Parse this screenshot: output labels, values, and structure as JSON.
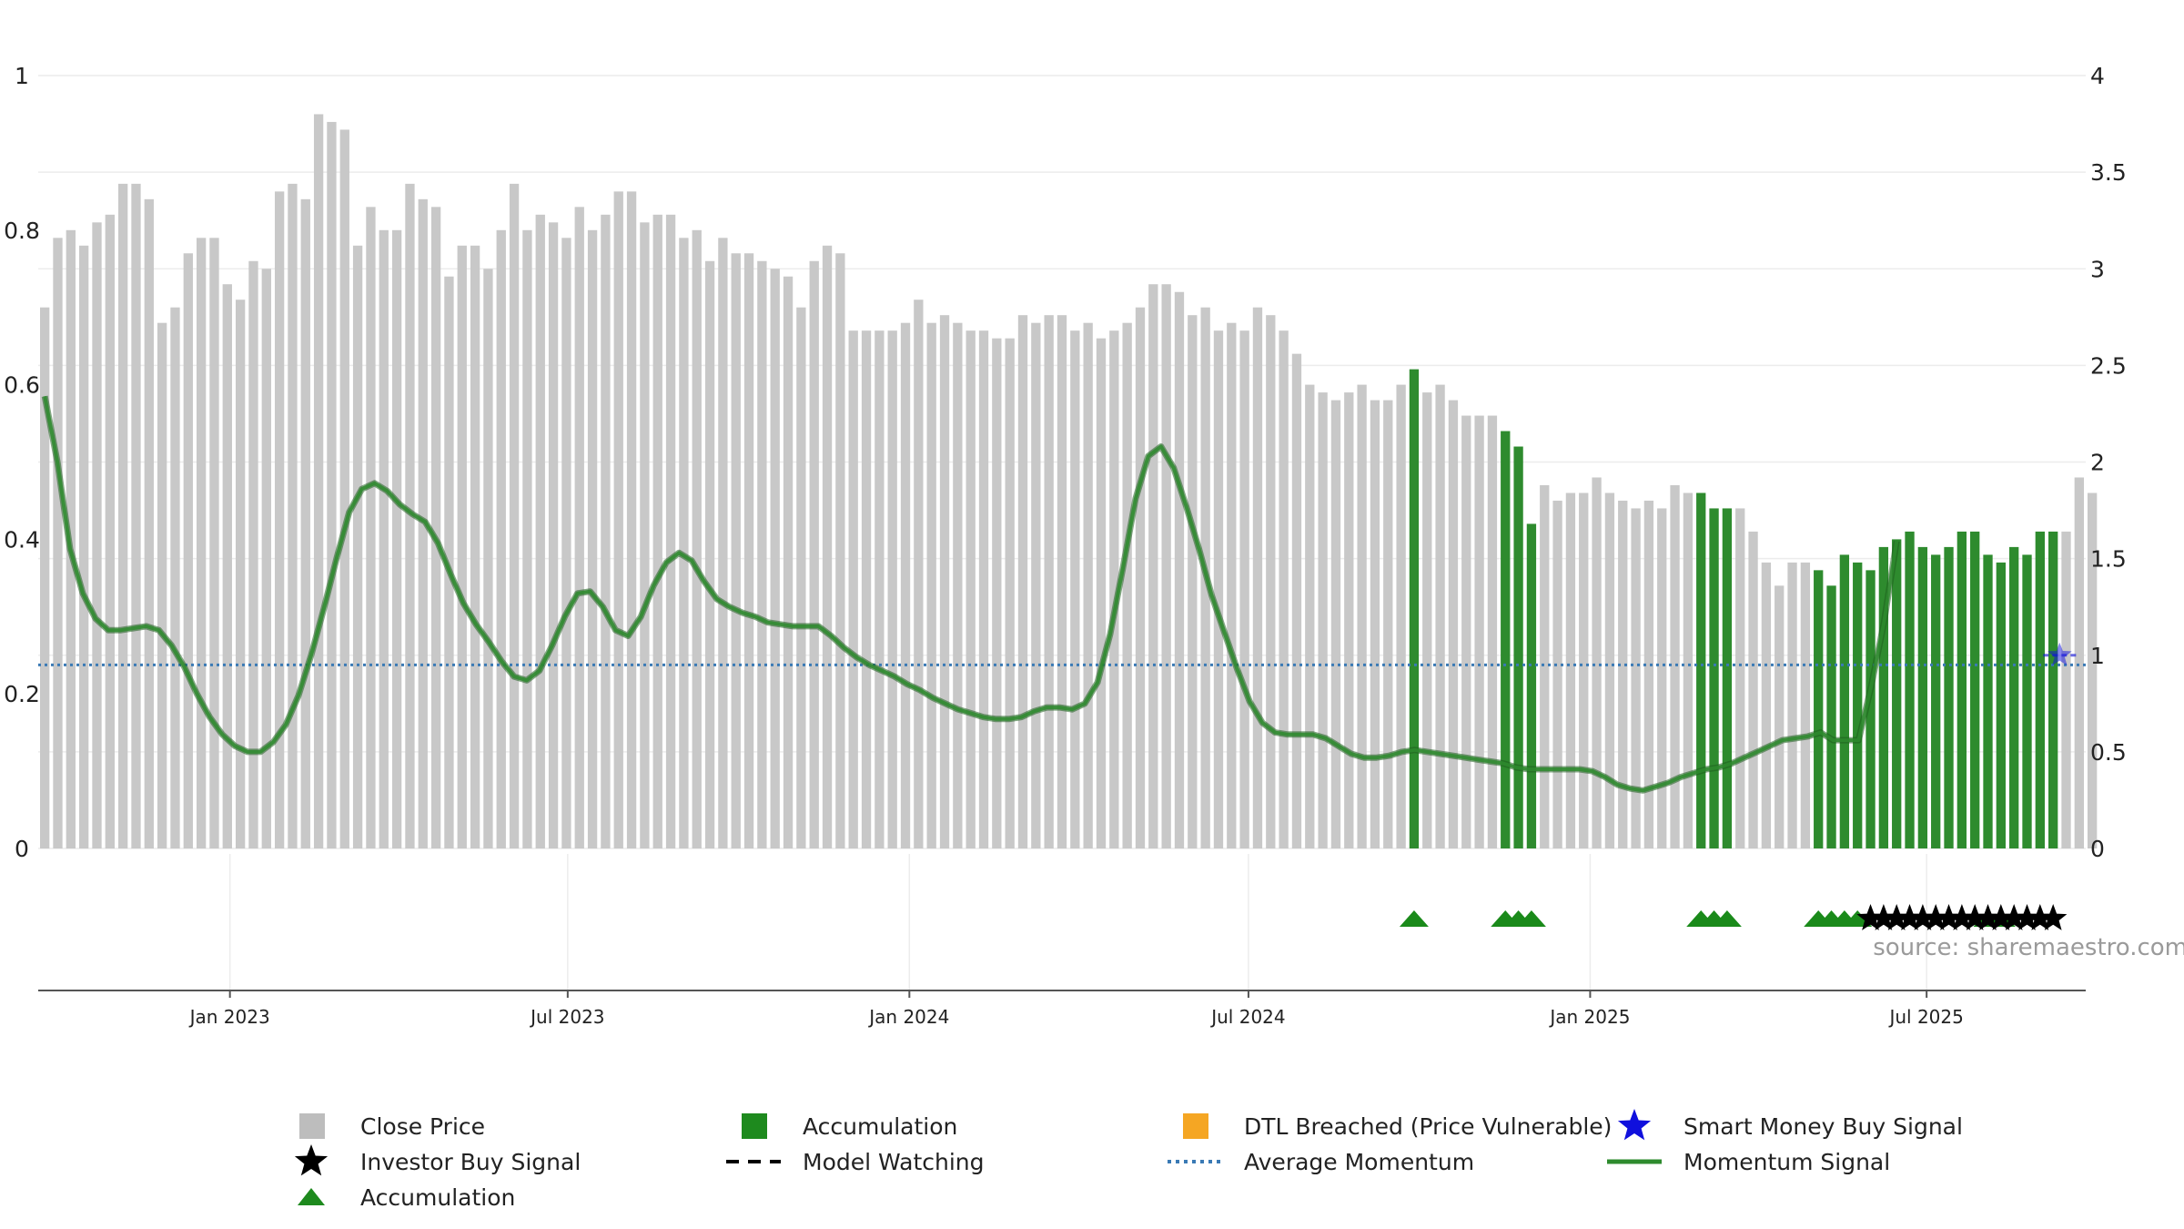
{
  "chart_data": {
    "type": "bar",
    "title": "",
    "source": "source: sharemaestro.com",
    "left_axis": {
      "range": [
        0,
        1
      ],
      "ticks": [
        "0",
        "0.2",
        "0.4",
        "0.6",
        "0.8",
        "1"
      ],
      "tick_values": [
        0,
        0.2,
        0.4,
        0.6,
        0.8,
        1
      ]
    },
    "right_axis": {
      "range": [
        0,
        4
      ],
      "ticks": [
        "0",
        "0.5",
        "1",
        "1.5",
        "2",
        "2.5",
        "3",
        "3.5",
        "4"
      ],
      "tick_values": [
        0,
        0.5,
        1,
        1.5,
        2,
        2.5,
        3,
        3.5,
        4
      ]
    },
    "x_axis": {
      "ticks": [
        "Jan 2023",
        "Jul 2023",
        "Jan 2024",
        "Jul 2024",
        "Jan 2025",
        "Jul 2025"
      ],
      "tick_index": [
        14.7,
        40.6,
        66.8,
        92.8,
        119.0,
        144.8
      ]
    },
    "bar_count": 157,
    "close_price": [
      0.7,
      0.79,
      0.8,
      0.78,
      0.81,
      0.82,
      0.86,
      0.86,
      0.84,
      0.68,
      0.7,
      0.77,
      0.79,
      0.79,
      0.73,
      0.71,
      0.76,
      0.75,
      0.85,
      0.86,
      0.84,
      0.95,
      0.94,
      0.93,
      0.78,
      0.83,
      0.8,
      0.8,
      0.86,
      0.84,
      0.83,
      0.74,
      0.78,
      0.78,
      0.75,
      0.8,
      0.86,
      0.8,
      0.82,
      0.81,
      0.79,
      0.83,
      0.8,
      0.82,
      0.85,
      0.85,
      0.81,
      0.82,
      0.82,
      0.79,
      0.8,
      0.76,
      0.79,
      0.77,
      0.77,
      0.76,
      0.75,
      0.74,
      0.7,
      0.76,
      0.78,
      0.77,
      0.67,
      0.67,
      0.67,
      0.67,
      0.68,
      0.71,
      0.68,
      0.69,
      0.68,
      0.67,
      0.67,
      0.66,
      0.66,
      0.69,
      0.68,
      0.69,
      0.69,
      0.67,
      0.68,
      0.66,
      0.67,
      0.68,
      0.7,
      0.73,
      0.73,
      0.72,
      0.69,
      0.7,
      0.67,
      0.68,
      0.67,
      0.7,
      0.69,
      0.67,
      0.64,
      0.6,
      0.59,
      0.58,
      0.59,
      0.6,
      0.58,
      0.58,
      0.6,
      0.62,
      0.59,
      0.6,
      0.58,
      0.56,
      0.56,
      0.56,
      0.54,
      0.52,
      0.42,
      0.47,
      0.45,
      0.46,
      0.46,
      0.48,
      0.46,
      0.45,
      0.44,
      0.45,
      0.44,
      0.47,
      0.46,
      0.46,
      0.44,
      0.44,
      0.44,
      0.41,
      0.37,
      0.34,
      0.37,
      0.37,
      0.36,
      0.34,
      0.38,
      0.37,
      0.36,
      0.39,
      0.4,
      0.41,
      0.39,
      0.38,
      0.39,
      0.41,
      0.41,
      0.38,
      0.37,
      0.39,
      0.38,
      0.41,
      0.41,
      0.41,
      0.48,
      0.46
    ],
    "accumulation_bars": [
      105,
      112,
      113,
      114,
      127,
      128,
      129,
      136,
      137,
      138,
      139,
      140,
      141,
      142,
      143,
      144,
      145,
      146,
      147,
      148,
      149,
      150,
      151,
      152,
      153,
      154
    ],
    "momentum_signal": [
      [
        0,
        2.34
      ],
      [
        1,
        2.0
      ],
      [
        2,
        1.55
      ],
      [
        3,
        1.32
      ],
      [
        4,
        1.19
      ],
      [
        5,
        1.13
      ],
      [
        6,
        1.13
      ],
      [
        7,
        1.14
      ],
      [
        8,
        1.15
      ],
      [
        9,
        1.13
      ],
      [
        10,
        1.05
      ],
      [
        11,
        0.94
      ],
      [
        12,
        0.8
      ],
      [
        13,
        0.68
      ],
      [
        14,
        0.59
      ],
      [
        15,
        0.53
      ],
      [
        16,
        0.5
      ],
      [
        17,
        0.5
      ],
      [
        18,
        0.55
      ],
      [
        19,
        0.64
      ],
      [
        20,
        0.79
      ],
      [
        21,
        1.0
      ],
      [
        22,
        1.24
      ],
      [
        23,
        1.5
      ],
      [
        24,
        1.74
      ],
      [
        25,
        1.86
      ],
      [
        26,
        1.89
      ],
      [
        27,
        1.85
      ],
      [
        28,
        1.78
      ],
      [
        29,
        1.73
      ],
      [
        30,
        1.69
      ],
      [
        31,
        1.58
      ],
      [
        32,
        1.42
      ],
      [
        33,
        1.27
      ],
      [
        34,
        1.16
      ],
      [
        35,
        1.07
      ],
      [
        36,
        0.97
      ],
      [
        37,
        0.89
      ],
      [
        38,
        0.87
      ],
      [
        39,
        0.92
      ],
      [
        40,
        1.05
      ],
      [
        41,
        1.2
      ],
      [
        42,
        1.32
      ],
      [
        43,
        1.33
      ],
      [
        44,
        1.25
      ],
      [
        45,
        1.13
      ],
      [
        46,
        1.1
      ],
      [
        47,
        1.2
      ],
      [
        48,
        1.36
      ],
      [
        49,
        1.48
      ],
      [
        50,
        1.53
      ],
      [
        51,
        1.49
      ],
      [
        52,
        1.38
      ],
      [
        53,
        1.29
      ],
      [
        54,
        1.25
      ],
      [
        55,
        1.22
      ],
      [
        56,
        1.2
      ],
      [
        57,
        1.17
      ],
      [
        58,
        1.16
      ],
      [
        59,
        1.15
      ],
      [
        60,
        1.15
      ],
      [
        61,
        1.15
      ],
      [
        62,
        1.1
      ],
      [
        63,
        1.04
      ],
      [
        64,
        0.99
      ],
      [
        65,
        0.95
      ],
      [
        66,
        0.92
      ],
      [
        67,
        0.89
      ],
      [
        68,
        0.85
      ],
      [
        69,
        0.82
      ],
      [
        70,
        0.78
      ],
      [
        71,
        0.75
      ],
      [
        72,
        0.72
      ],
      [
        73,
        0.7
      ],
      [
        74,
        0.68
      ],
      [
        75,
        0.67
      ],
      [
        76,
        0.67
      ],
      [
        77,
        0.68
      ],
      [
        78,
        0.71
      ],
      [
        79,
        0.73
      ],
      [
        80,
        0.73
      ],
      [
        81,
        0.72
      ],
      [
        82,
        0.75
      ],
      [
        83,
        0.86
      ],
      [
        84,
        1.11
      ],
      [
        85,
        1.45
      ],
      [
        86,
        1.81
      ],
      [
        87,
        2.03
      ],
      [
        88,
        2.08
      ],
      [
        89,
        1.97
      ],
      [
        90,
        1.77
      ],
      [
        91,
        1.55
      ],
      [
        92,
        1.31
      ],
      [
        93,
        1.12
      ],
      [
        94,
        0.93
      ],
      [
        95,
        0.76
      ],
      [
        96,
        0.65
      ],
      [
        97,
        0.6
      ],
      [
        98,
        0.59
      ],
      [
        99,
        0.59
      ],
      [
        100,
        0.59
      ],
      [
        101,
        0.57
      ],
      [
        102,
        0.53
      ],
      [
        103,
        0.49
      ],
      [
        104,
        0.47
      ],
      [
        105,
        0.47
      ],
      [
        106,
        0.48
      ],
      [
        107,
        0.5
      ],
      [
        108,
        0.51
      ],
      [
        109,
        0.5
      ],
      [
        110,
        0.49
      ],
      [
        111,
        0.48
      ],
      [
        112,
        0.47
      ],
      [
        113,
        0.46
      ],
      [
        114,
        0.45
      ],
      [
        115,
        0.44
      ],
      [
        116,
        0.42
      ],
      [
        117,
        0.41
      ],
      [
        118,
        0.41
      ],
      [
        119,
        0.41
      ],
      [
        120,
        0.41
      ],
      [
        121,
        0.41
      ],
      [
        122,
        0.4
      ],
      [
        123,
        0.37
      ],
      [
        124,
        0.33
      ],
      [
        125,
        0.31
      ],
      [
        126,
        0.3
      ],
      [
        127,
        0.32
      ],
      [
        128,
        0.34
      ],
      [
        129,
        0.37
      ],
      [
        130,
        0.39
      ],
      [
        131,
        0.41
      ],
      [
        132,
        0.42
      ],
      [
        133,
        0.44
      ],
      [
        134,
        0.47
      ],
      [
        135,
        0.5
      ],
      [
        136,
        0.53
      ],
      [
        137,
        0.56
      ],
      [
        138,
        0.57
      ],
      [
        139,
        0.58
      ],
      [
        140,
        0.6
      ],
      [
        141,
        0.56
      ],
      [
        142,
        0.56
      ],
      [
        143,
        0.56
      ],
      [
        144,
        0.84
      ],
      [
        145,
        1.17
      ],
      [
        146,
        1.59
      ]
    ],
    "average_momentum": 0.95,
    "momentum_signal_x_scale": 0.9726,
    "accumulation_triangles": [
      105,
      112,
      113,
      114,
      127,
      128,
      129,
      136,
      137,
      138,
      139,
      149,
      150
    ],
    "investor_buy_signals": [
      140,
      141,
      142,
      143,
      144,
      145,
      146,
      147,
      148,
      149,
      150,
      151,
      152,
      153,
      154
    ],
    "smart_money_buy_signal": {
      "index": 154.5,
      "value": 1.0
    },
    "legend": [
      {
        "label": "Close Price",
        "marker": "square",
        "color": "#bdbdbd"
      },
      {
        "label": "Accumulation",
        "marker": "square",
        "color": "#1e8a1e"
      },
      {
        "label": "DTL Breached (Price Vulnerable)",
        "marker": "square",
        "color": "#f5a623"
      },
      {
        "label": "Smart Money Buy Signal",
        "marker": "star",
        "color": "#1010dd"
      },
      {
        "label": "Investor Buy Signal",
        "marker": "star",
        "color": "#000000"
      },
      {
        "label": "Model Watching",
        "marker": "dash",
        "color": "#000000"
      },
      {
        "label": "Average Momentum",
        "marker": "dotted",
        "color": "#3a7ab5"
      },
      {
        "label": "Momentum Signal",
        "marker": "line",
        "color": "#2e8b2e"
      },
      {
        "label": "Accumulation",
        "marker": "triangle",
        "color": "#1e8a1e"
      }
    ],
    "colors": {
      "close": "#c8c8c8",
      "accumulation": "#2e8b2e",
      "momentum": "#2e8b2e",
      "average": "#3a7ab5",
      "smart_money": "#1010dd",
      "grid": "#ececec",
      "axis": "#555555"
    }
  }
}
